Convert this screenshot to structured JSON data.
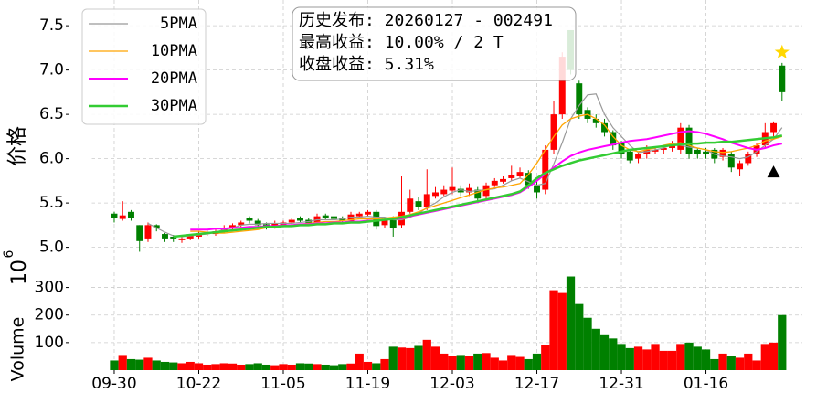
{
  "chart_data": {
    "type": "candlestick",
    "categories": [
      "09-30",
      null,
      null,
      null,
      null,
      null,
      null,
      null,
      null,
      null,
      "10-22",
      null,
      null,
      null,
      null,
      null,
      null,
      null,
      null,
      null,
      "11-05",
      null,
      null,
      null,
      null,
      null,
      null,
      null,
      null,
      null,
      "11-19",
      null,
      null,
      null,
      null,
      null,
      null,
      null,
      null,
      null,
      "12-03",
      null,
      null,
      null,
      null,
      null,
      null,
      null,
      null,
      null,
      "12-17",
      null,
      null,
      null,
      null,
      null,
      null,
      null,
      null,
      null,
      "12-31",
      null,
      null,
      null,
      null,
      null,
      null,
      null,
      null,
      null,
      "01-16",
      null,
      null,
      null,
      null,
      null,
      null,
      null,
      null,
      null
    ],
    "xlim": [
      -2.7,
      81.4
    ],
    "ylabel": "价格",
    "ylim": [
      4.8,
      7.79
    ],
    "yticks": [
      {
        "value": 5,
        "label": "5.0"
      },
      5.5,
      {
        "value": 6,
        "label": "6.0"
      },
      6.5,
      {
        "value": 7,
        "label": "7.0"
      },
      7.5
    ],
    "grid": true,
    "up_color": "#ff0000",
    "down_color": "#008000",
    "open": [
      5.38,
      5.32,
      5.4,
      5.25,
      5.1,
      5.25,
      5.15,
      5.12,
      5.08,
      5.1,
      5.12,
      5.15,
      5.15,
      5.18,
      5.22,
      5.25,
      5.33,
      5.3,
      5.26,
      5.23,
      5.25,
      5.28,
      5.33,
      5.31,
      5.28,
      5.36,
      5.35,
      5.33,
      5.3,
      5.35,
      5.37,
      5.4,
      5.25,
      5.32,
      5.25,
      5.4,
      5.52,
      5.45,
      5.58,
      5.6,
      5.64,
      5.66,
      5.62,
      5.65,
      5.58,
      5.7,
      5.74,
      5.78,
      5.8,
      5.84,
      5.7,
      5.65,
      6.1,
      6.5,
      7.45,
      6.85,
      6.55,
      6.45,
      6.4,
      6.3,
      6.18,
      6.08,
      6.0,
      6.05,
      6.08,
      6.1,
      6.12,
      6.1,
      6.35,
      6.1,
      6.08,
      6.1,
      6.02,
      6.05,
      5.88,
      5.95,
      6.05,
      6.15,
      6.3,
      7.05
    ],
    "high": [
      5.4,
      5.52,
      5.42,
      5.25,
      5.28,
      5.26,
      5.16,
      5.14,
      5.12,
      5.15,
      5.18,
      5.19,
      5.2,
      5.25,
      5.27,
      5.3,
      5.35,
      5.32,
      5.28,
      5.3,
      5.3,
      5.33,
      5.35,
      5.33,
      5.38,
      5.38,
      5.37,
      5.35,
      5.4,
      5.4,
      5.42,
      5.42,
      5.33,
      5.35,
      5.8,
      5.65,
      5.57,
      5.88,
      5.68,
      5.7,
      5.9,
      5.7,
      5.72,
      5.68,
      5.73,
      5.78,
      5.8,
      5.92,
      5.9,
      5.87,
      5.75,
      6.15,
      6.65,
      7.2,
      7.45,
      6.88,
      6.58,
      6.5,
      6.45,
      6.32,
      6.2,
      6.1,
      6.08,
      6.15,
      6.14,
      6.15,
      6.2,
      6.4,
      6.38,
      6.12,
      6.12,
      6.12,
      6.12,
      6.08,
      5.98,
      6.08,
      6.18,
      6.4,
      6.42,
      7.08
    ],
    "low": [
      5.28,
      5.3,
      5.3,
      4.95,
      5.06,
      5.18,
      5.06,
      5.06,
      5.05,
      5.08,
      5.1,
      5.13,
      5.13,
      5.16,
      5.2,
      5.23,
      5.27,
      5.23,
      5.2,
      5.21,
      5.23,
      5.26,
      5.28,
      5.25,
      5.26,
      5.31,
      5.3,
      5.28,
      5.28,
      5.33,
      5.35,
      5.2,
      5.22,
      5.12,
      5.22,
      5.38,
      5.42,
      5.42,
      5.55,
      5.58,
      5.6,
      5.58,
      5.58,
      5.5,
      5.55,
      5.68,
      5.72,
      5.75,
      5.78,
      5.66,
      5.55,
      5.6,
      6.05,
      6.45,
      6.95,
      6.45,
      6.4,
      6.35,
      6.25,
      6.1,
      6.0,
      5.95,
      5.95,
      6.0,
      6.05,
      6.05,
      6.08,
      6.05,
      6.0,
      6.0,
      6.0,
      5.95,
      5.98,
      5.85,
      5.8,
      5.92,
      6.02,
      6.12,
      6.25,
      6.65
    ],
    "close": [
      5.33,
      5.36,
      5.33,
      5.07,
      5.25,
      5.22,
      5.1,
      5.1,
      5.1,
      5.13,
      5.15,
      5.17,
      5.18,
      5.22,
      5.25,
      5.28,
      5.3,
      5.25,
      5.22,
      5.27,
      5.28,
      5.31,
      5.3,
      5.27,
      5.35,
      5.33,
      5.32,
      5.3,
      5.37,
      5.38,
      5.4,
      5.24,
      5.3,
      5.22,
      5.4,
      5.55,
      5.45,
      5.6,
      5.62,
      5.65,
      5.68,
      5.62,
      5.67,
      5.55,
      5.7,
      5.75,
      5.77,
      5.82,
      5.85,
      5.7,
      5.62,
      6.1,
      6.5,
      7.15,
      7.0,
      6.5,
      6.45,
      6.4,
      6.3,
      6.15,
      6.05,
      5.98,
      6.05,
      6.1,
      6.1,
      6.12,
      6.15,
      6.35,
      6.05,
      6.05,
      6.05,
      6.0,
      6.1,
      5.9,
      5.95,
      6.05,
      6.15,
      6.3,
      6.4,
      6.75
    ],
    "series": [
      {
        "name": " 5PMA",
        "color": "#999999",
        "width": 1.2,
        "values": [
          null,
          null,
          null,
          null,
          5.27,
          5.22,
          5.17,
          5.13,
          5.12,
          5.13,
          5.14,
          5.15,
          5.17,
          5.2,
          5.22,
          5.25,
          5.26,
          5.26,
          5.27,
          5.27,
          5.27,
          5.27,
          5.28,
          5.29,
          5.31,
          5.31,
          5.31,
          5.32,
          5.34,
          5.34,
          5.35,
          5.34,
          5.34,
          5.31,
          5.31,
          5.34,
          5.38,
          5.45,
          5.5,
          5.57,
          5.62,
          5.65,
          5.63,
          5.64,
          5.65,
          5.66,
          5.7,
          5.75,
          5.78,
          5.74,
          5.7,
          5.72,
          5.94,
          6.18,
          6.45,
          6.6,
          6.72,
          6.73,
          6.5,
          6.35,
          6.25,
          6.15,
          6.07,
          6.08,
          6.1,
          6.12,
          6.16,
          6.15,
          6.13,
          6.12,
          6.1,
          6.05,
          6.03,
          6.02,
          6.0,
          6.02,
          6.08,
          6.15,
          6.22,
          6.35
        ]
      },
      {
        "name": "10PMA",
        "color": "#ffa500",
        "width": 1.3,
        "values": [
          null,
          null,
          null,
          null,
          null,
          null,
          null,
          null,
          null,
          5.18,
          5.18,
          5.17,
          5.16,
          5.16,
          5.17,
          5.18,
          5.19,
          5.2,
          5.22,
          5.23,
          5.24,
          5.25,
          5.26,
          5.27,
          5.28,
          5.29,
          5.29,
          5.3,
          5.31,
          5.32,
          5.32,
          5.32,
          5.33,
          5.34,
          5.35,
          5.37,
          5.4,
          5.44,
          5.47,
          5.5,
          5.53,
          5.56,
          5.59,
          5.62,
          5.65,
          5.67,
          5.68,
          5.7,
          5.72,
          5.82,
          5.95,
          6.1,
          6.25,
          6.38,
          6.45,
          6.48,
          6.5,
          6.45,
          6.38,
          6.25,
          6.15,
          6.1,
          6.08,
          6.1,
          6.12,
          6.15,
          6.17,
          6.18,
          6.15,
          6.12,
          6.1,
          6.08,
          6.07,
          6.08,
          6.1,
          6.12,
          6.15,
          6.2,
          6.22,
          6.25
        ]
      },
      {
        "name": "20PMA",
        "color": "#ff00ff",
        "width": 2,
        "values": [
          null,
          null,
          null,
          null,
          null,
          null,
          null,
          null,
          null,
          5.2,
          5.2,
          5.2,
          5.21,
          5.21,
          5.22,
          5.22,
          5.23,
          5.23,
          5.24,
          5.24,
          5.25,
          5.25,
          5.26,
          5.26,
          5.27,
          5.27,
          5.28,
          5.28,
          5.29,
          5.29,
          5.3,
          5.3,
          5.31,
          5.32,
          5.33,
          5.35,
          5.37,
          5.39,
          5.41,
          5.43,
          5.45,
          5.47,
          5.49,
          5.51,
          5.53,
          5.55,
          5.57,
          5.59,
          5.62,
          5.68,
          5.75,
          5.83,
          5.9,
          5.97,
          6.03,
          6.07,
          6.1,
          6.12,
          6.14,
          6.16,
          6.18,
          6.2,
          6.21,
          6.22,
          6.24,
          6.26,
          6.28,
          6.3,
          6.31,
          6.3,
          6.28,
          6.25,
          6.22,
          6.18,
          6.15,
          6.12,
          6.1,
          6.12,
          6.15,
          6.17
        ]
      },
      {
        "name": "30PMA",
        "color": "#33cc33",
        "width": 2.5,
        "values": [
          null,
          null,
          null,
          null,
          null,
          null,
          null,
          5.12,
          5.13,
          5.14,
          5.15,
          5.16,
          5.17,
          5.18,
          5.19,
          5.2,
          5.21,
          5.22,
          5.23,
          5.23,
          5.24,
          5.24,
          5.25,
          5.25,
          5.26,
          5.26,
          5.27,
          5.27,
          5.28,
          5.28,
          5.29,
          5.3,
          5.31,
          5.32,
          5.34,
          5.36,
          5.38,
          5.4,
          5.42,
          5.44,
          5.46,
          5.48,
          5.5,
          5.52,
          5.54,
          5.56,
          5.58,
          5.6,
          5.63,
          5.7,
          5.78,
          5.84,
          5.88,
          5.92,
          5.95,
          5.98,
          6.0,
          6.02,
          6.04,
          6.06,
          6.08,
          6.1,
          6.11,
          6.12,
          6.13,
          6.14,
          6.15,
          6.16,
          6.17,
          6.17,
          6.18,
          6.18,
          6.19,
          6.19,
          6.2,
          6.21,
          6.22,
          6.23,
          6.24,
          6.26
        ]
      }
    ],
    "markers": [
      {
        "x": 79,
        "y": 7.2,
        "shape": "star",
        "color": "#ffd700"
      },
      {
        "x": 78,
        "y": 5.85,
        "shape": "triangle",
        "color": "#000000"
      }
    ],
    "annotation": [
      "历史发布: 20260127 - 002491",
      "最高收益: 10.00% / 2 T",
      "收盘收益: 5.31%"
    ],
    "volume": {
      "ylabel": "Volume",
      "offset_base": "10",
      "offset_exp": "6",
      "ylim": [
        0,
        355
      ],
      "yticks": [
        100,
        200,
        300
      ],
      "values": [
        35,
        55,
        40,
        38,
        45,
        35,
        30,
        28,
        25,
        30,
        25,
        20,
        22,
        25,
        24,
        20,
        22,
        25,
        20,
        18,
        22,
        20,
        25,
        24,
        22,
        20,
        18,
        22,
        24,
        60,
        30,
        25,
        40,
        85,
        82,
        80,
        88,
        110,
        85,
        60,
        50,
        55,
        50,
        60,
        62,
        45,
        35,
        55,
        48,
        40,
        60,
        90,
        290,
        280,
        340,
        240,
        190,
        150,
        130,
        115,
        95,
        80,
        85,
        75,
        95,
        70,
        70,
        95,
        100,
        85,
        75,
        40,
        60,
        50,
        45,
        60,
        35,
        95,
        100,
        200
      ]
    }
  }
}
